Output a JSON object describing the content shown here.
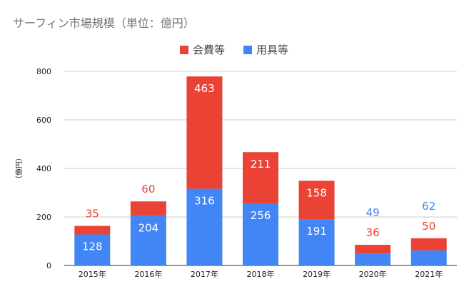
{
  "chart_data": {
    "type": "bar",
    "stacked": true,
    "title": "サーフィン市場規模（単位：億円）",
    "ylabel": "（億円）",
    "xlabel": "",
    "categories": [
      "2015年",
      "2016年",
      "2017年",
      "2018年",
      "2019年",
      "2020年",
      "2021年"
    ],
    "series": [
      {
        "name": "用具等",
        "color": "#4285f4",
        "label_color_outside": "#4285f4",
        "values": [
          128,
          204,
          316,
          256,
          191,
          49,
          62
        ]
      },
      {
        "name": "会費等",
        "color": "#ea4335",
        "label_color_outside": "#ea4335",
        "values": [
          35,
          60,
          463,
          211,
          158,
          36,
          50
        ]
      }
    ],
    "ylim": [
      0,
      800
    ],
    "yticks": [
      0,
      200,
      400,
      600,
      800
    ],
    "grid": true,
    "legend_position": "top"
  }
}
